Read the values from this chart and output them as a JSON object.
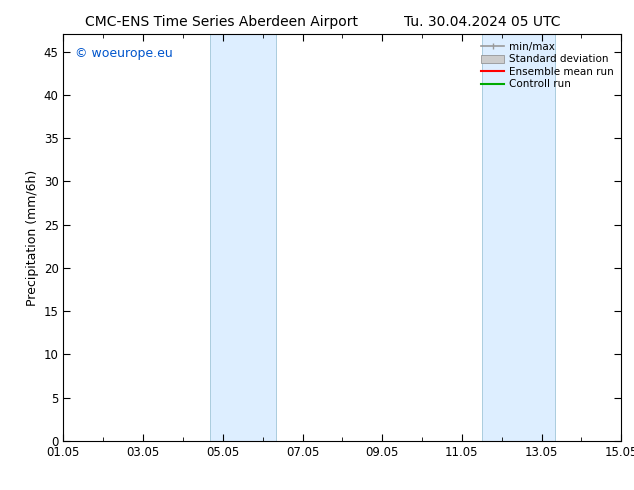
{
  "title_left": "CMC-ENS Time Series Aberdeen Airport",
  "title_right": "Tu. 30.04.2024 05 UTC",
  "ylabel": "Precipitation (mm/6h)",
  "watermark": "© woeurope.eu",
  "watermark_color": "#0055cc",
  "ylim": [
    0,
    47
  ],
  "yticks": [
    0,
    5,
    10,
    15,
    20,
    25,
    30,
    35,
    40,
    45
  ],
  "xtick_labels": [
    "01.05",
    "03.05",
    "05.05",
    "07.05",
    "09.05",
    "11.05",
    "13.05",
    "15.05"
  ],
  "xtick_positions": [
    0,
    2,
    4,
    6,
    8,
    10,
    12,
    14
  ],
  "xlim": [
    0,
    14
  ],
  "shaded_bands": [
    {
      "x_start_day": 3.67,
      "x_end_day": 5.33
    },
    {
      "x_start_day": 10.5,
      "x_end_day": 12.33
    }
  ],
  "band_color": "#ddeeff",
  "band_edge_color": "#aaccdd",
  "legend_labels": [
    "min/max",
    "Standard deviation",
    "Ensemble mean run",
    "Controll run"
  ],
  "legend_colors": [
    "#999999",
    "#cccccc",
    "#ff0000",
    "#00aa00"
  ],
  "background_color": "#ffffff",
  "axes_color": "#000000",
  "title_fontsize": 10,
  "tick_fontsize": 8.5,
  "ylabel_fontsize": 9
}
